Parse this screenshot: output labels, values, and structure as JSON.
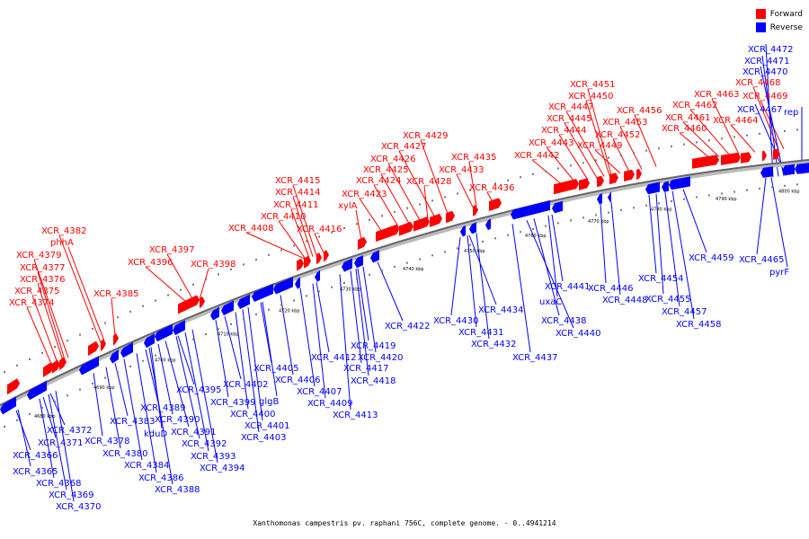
{
  "caption": "Xanthomonas campestris pv. raphani 756C, complete genome. - 0..4941214",
  "legend": [
    {
      "label": "Forward",
      "color": "#ff0000"
    },
    {
      "label": "Reverse",
      "color": "#0000ff"
    }
  ],
  "colors": {
    "forward": "#ff0000",
    "reverse": "#0000ff",
    "axis": "#777777"
  },
  "ticks": [
    "4680 kbp",
    "4690 kbp",
    "4700 kbp",
    "4710 kbp",
    "4720 kbp",
    "4730 kbp",
    "4740 kbp",
    "4750 kbp",
    "4760 kbp",
    "4770 kbp",
    "4780 kbp",
    "4790 kbp",
    "4800 kbp"
  ],
  "forward_labels": [
    {
      "name": "XCR_4382"
    },
    {
      "name": "phhA"
    },
    {
      "name": "XCR_4379"
    },
    {
      "name": "XCR_4377"
    },
    {
      "name": "XCR_4376"
    },
    {
      "name": "XCR_4375"
    },
    {
      "name": "XCR_4374"
    },
    {
      "name": "XCR_4385"
    },
    {
      "name": "XCR_4397"
    },
    {
      "name": "XCR_4396"
    },
    {
      "name": "XCR_4398"
    },
    {
      "name": "XCR_4408"
    },
    {
      "name": "XCR_4415"
    },
    {
      "name": "XCR_4414"
    },
    {
      "name": "XCR_4411"
    },
    {
      "name": "XCR_4410"
    },
    {
      "name": "XCR_4416"
    },
    {
      "name": "XCR_4429"
    },
    {
      "name": "XCR_4427"
    },
    {
      "name": "XCR_4426"
    },
    {
      "name": "XCR_4425"
    },
    {
      "name": "XCR_4424"
    },
    {
      "name": "XCR_4423"
    },
    {
      "name": "xylA"
    },
    {
      "name": "XCR_4428"
    },
    {
      "name": "XCR_4435"
    },
    {
      "name": "XCR_4433"
    },
    {
      "name": "XCR_4436"
    },
    {
      "name": "XCR_4451"
    },
    {
      "name": "XCR_4450"
    },
    {
      "name": "XCR_4447"
    },
    {
      "name": "XCR_4445"
    },
    {
      "name": "XCR_4444"
    },
    {
      "name": "XCR_4443"
    },
    {
      "name": "XCR_4442"
    },
    {
      "name": "XCR_4456"
    },
    {
      "name": "XCR_4453"
    },
    {
      "name": "XCR_4452"
    },
    {
      "name": "XCR_4449"
    },
    {
      "name": "XCR_4463"
    },
    {
      "name": "XCR_4462"
    },
    {
      "name": "XCR_4461"
    },
    {
      "name": "XCR_4460"
    },
    {
      "name": "XCR_4468"
    },
    {
      "name": "XCR_4469"
    },
    {
      "name": "XCR_4464"
    }
  ],
  "reverse_labels": [
    {
      "name": "XCR_4472"
    },
    {
      "name": "XCR_4471"
    },
    {
      "name": "XCR_4470"
    },
    {
      "name": "XCR_4467"
    },
    {
      "name": "rep"
    },
    {
      "name": "XCR_4459"
    },
    {
      "name": "XCR_4465"
    },
    {
      "name": "pyrF"
    },
    {
      "name": "XCR_4454"
    },
    {
      "name": "XCR_4455"
    },
    {
      "name": "XCR_4457"
    },
    {
      "name": "XCR_4458"
    },
    {
      "name": "XCR_4446"
    },
    {
      "name": "XCR_4448"
    },
    {
      "name": "XCR_4441"
    },
    {
      "name": "uxaC"
    },
    {
      "name": "XCR_4438"
    },
    {
      "name": "XCR_4440"
    },
    {
      "name": "XCR_4434"
    },
    {
      "name": "XCR_4430"
    },
    {
      "name": "XCR_4431"
    },
    {
      "name": "XCR_4432"
    },
    {
      "name": "XCR_4437"
    },
    {
      "name": "XCR_4422"
    },
    {
      "name": "XCR_4419"
    },
    {
      "name": "XCR_4420"
    },
    {
      "name": "XCR_4412"
    },
    {
      "name": "XCR_4417"
    },
    {
      "name": "XCR_4418"
    },
    {
      "name": "XCR_4405"
    },
    {
      "name": "XCR_4406"
    },
    {
      "name": "XCR_4407"
    },
    {
      "name": "XCR_4409"
    },
    {
      "name": "XCR_4413"
    },
    {
      "name": "XCR_4402"
    },
    {
      "name": "XCR_4399"
    },
    {
      "name": "glgB"
    },
    {
      "name": "XCR_4400"
    },
    {
      "name": "XCR_4401"
    },
    {
      "name": "XCR_4403"
    },
    {
      "name": "XCR_4395"
    },
    {
      "name": "XCR_4389"
    },
    {
      "name": "XCR_4390"
    },
    {
      "name": "kduD"
    },
    {
      "name": "XCR_4391"
    },
    {
      "name": "XCR_4392"
    },
    {
      "name": "XCR_4393"
    },
    {
      "name": "XCR_4394"
    },
    {
      "name": "XCR_4383"
    },
    {
      "name": "XCR_4378"
    },
    {
      "name": "XCR_4380"
    },
    {
      "name": "XCR_4384"
    },
    {
      "name": "XCR_4386"
    },
    {
      "name": "XCR_4388"
    },
    {
      "name": "XCR_4372"
    },
    {
      "name": "XCR_4371"
    },
    {
      "name": "XCR_4366"
    },
    {
      "name": "XCR_4365"
    },
    {
      "name": "XCR_4368"
    },
    {
      "name": "XCR_4369"
    },
    {
      "name": "XCR_4370"
    }
  ]
}
